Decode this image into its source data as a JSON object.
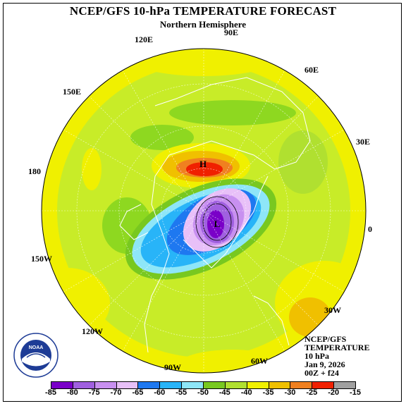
{
  "header": {
    "title": "NCEP/GFS 10-hPa TEMPERATURE FORECAST",
    "subtitle": "Northern Hemisphere"
  },
  "longitude_labels": [
    {
      "key": "e90",
      "text": "90E"
    },
    {
      "key": "e120",
      "text": "120E"
    },
    {
      "key": "e60",
      "text": "60E"
    },
    {
      "key": "e150",
      "text": "150E"
    },
    {
      "key": "e30",
      "text": "30E"
    },
    {
      "key": "d180",
      "text": "180"
    },
    {
      "key": "d0",
      "text": "0"
    },
    {
      "key": "w150",
      "text": "150W"
    },
    {
      "key": "w30",
      "text": "30W"
    },
    {
      "key": "w120",
      "text": "120W"
    },
    {
      "key": "w90",
      "text": "90W"
    },
    {
      "key": "w60",
      "text": "60W"
    }
  ],
  "markers": {
    "high": "H",
    "low": "L"
  },
  "info_box": {
    "line1": "NCEP/GFS",
    "line2": "TEMPERATURE",
    "line3": "10 hPa",
    "line4": "Jan 9, 2026",
    "line5": "00Z + f24"
  },
  "logo": {
    "text": "NOAA"
  },
  "colorbar": {
    "labels": [
      "-85",
      "-80",
      "-75",
      "-70",
      "-65",
      "-60",
      "-55",
      "-50",
      "-45",
      "-40",
      "-35",
      "-30",
      "-25",
      "-20",
      "-15"
    ],
    "colors": [
      "#7a00c8",
      "#a060e0",
      "#c890f0",
      "#e8c0f8",
      "#1e78f0",
      "#28b4f8",
      "#8ee6f8",
      "#78c820",
      "#b0e030",
      "#f0f000",
      "#f0c000",
      "#f08020",
      "#f02000",
      "#a0a0a0"
    ]
  }
}
